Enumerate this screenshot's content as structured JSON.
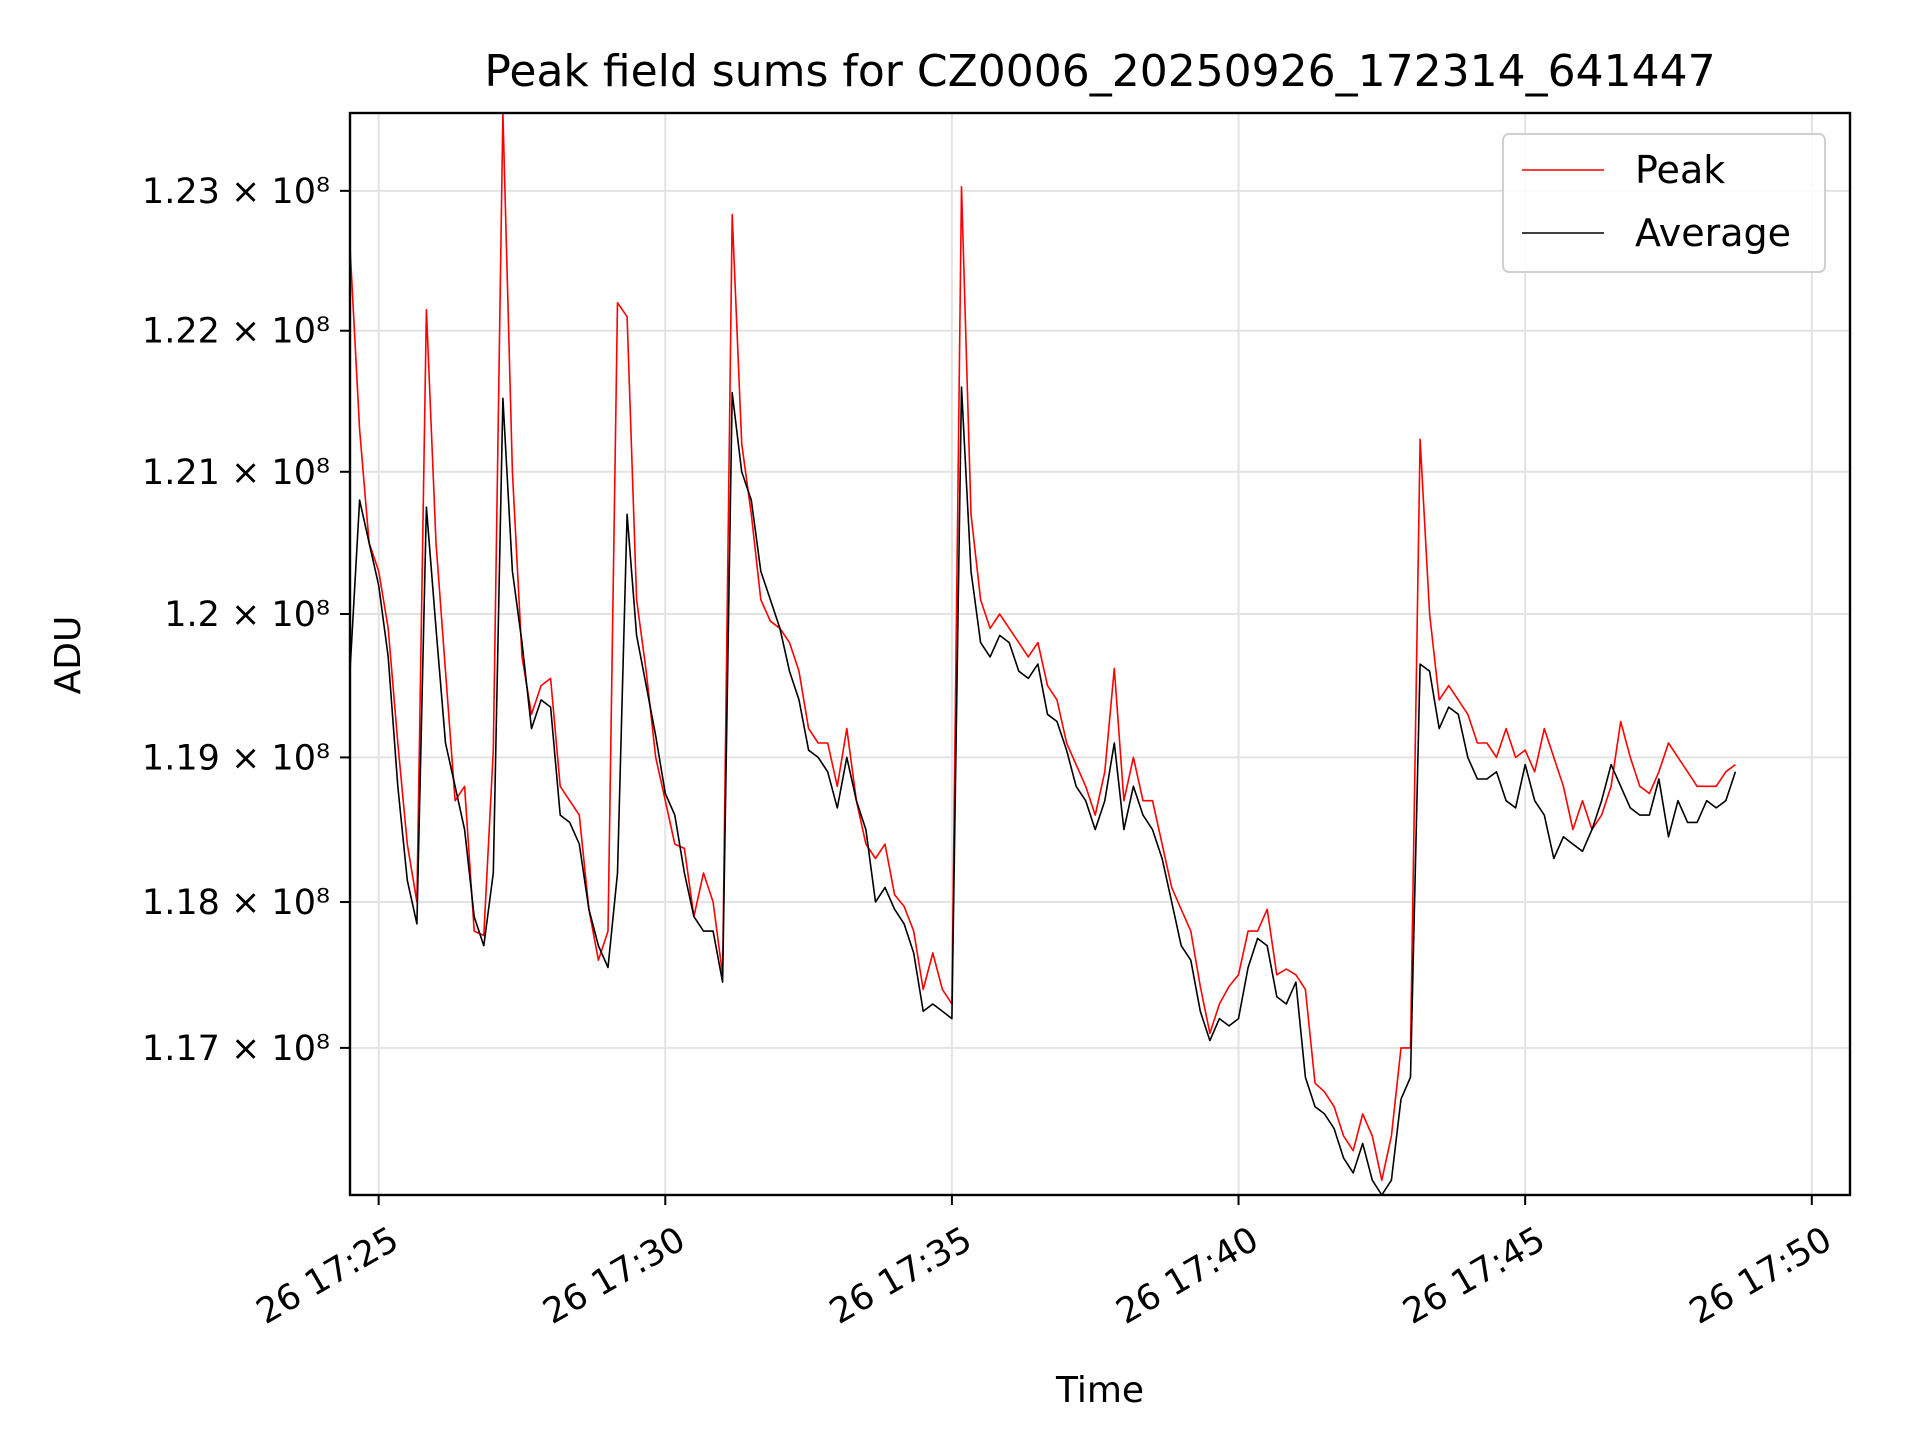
{
  "chart_data": {
    "type": "line",
    "title": "Peak field sums for CZ0006_20250926_172314_641447",
    "xlabel": "Time",
    "ylabel": "ADU",
    "x_unit": "time (2025-09-26, HH:MM)",
    "x_start": "17:24:30",
    "x_step_seconds": 10,
    "xlim": [
      "17:24:30",
      "17:50:40"
    ],
    "ylim": [
      116000000,
      123560000
    ],
    "y_scale": "log",
    "x_ticks": [
      {
        "time": "17:25",
        "label": "26 17:25"
      },
      {
        "time": "17:30",
        "label": "26 17:30"
      },
      {
        "time": "17:35",
        "label": "26 17:35"
      },
      {
        "time": "17:40",
        "label": "26 17:40"
      },
      {
        "time": "17:45",
        "label": "26 17:45"
      },
      {
        "time": "17:50",
        "label": "26 17:50"
      }
    ],
    "y_ticks": [
      {
        "value": 117000000,
        "label": "1.17 × 10⁸"
      },
      {
        "value": 118000000,
        "label": "1.18 × 10⁸"
      },
      {
        "value": 119000000,
        "label": "1.19 × 10⁸"
      },
      {
        "value": 120000000,
        "label": "1.2 × 10⁸"
      },
      {
        "value": 121000000,
        "label": "1.21 × 10⁸"
      },
      {
        "value": 122000000,
        "label": "1.22 × 10⁸"
      },
      {
        "value": 123000000,
        "label": "1.23 × 10⁸"
      }
    ],
    "grid": true,
    "legend_position": "top-right",
    "series": [
      {
        "name": "Peak",
        "color": "#ff0000",
        "values": [
          122600000,
          121300000,
          120500000,
          120300000,
          119900000,
          119100000,
          118400000,
          118000000,
          122150000,
          120500000,
          119600000,
          118700000,
          118800000,
          117800000,
          117770000,
          119050000,
          123560000,
          121000000,
          119700000,
          119300000,
          119500000,
          119550000,
          118800000,
          118700000,
          118600000,
          117950000,
          117600000,
          117800000,
          122200000,
          122100000,
          120100000,
          119600000,
          119000000,
          118700000,
          118400000,
          118370000,
          117900000,
          118200000,
          118000000,
          117500000,
          122830000,
          121200000,
          120700000,
          120100000,
          119950000,
          119900000,
          119800000,
          119600000,
          119200000,
          119100000,
          119100000,
          118800000,
          119200000,
          118700000,
          118400000,
          118300000,
          118400000,
          118050000,
          117970000,
          117800000,
          117400000,
          117650000,
          117400000,
          117300000,
          123030000,
          120700000,
          120100000,
          119900000,
          120000000,
          119900000,
          119800000,
          119700000,
          119800000,
          119500000,
          119400000,
          119100000,
          118950000,
          118800000,
          118600000,
          118900000,
          119620000,
          118700000,
          119000000,
          118700000,
          118700000,
          118400000,
          118100000,
          117950000,
          117800000,
          117420000,
          117100000,
          117300000,
          117420000,
          117500000,
          117800000,
          117800000,
          117950000,
          117500000,
          117540000,
          117500000,
          117400000,
          116760000,
          116700000,
          116600000,
          116400000,
          116300000,
          116550000,
          116400000,
          116100000,
          116400000,
          117000000,
          117000000,
          121230000,
          120000000,
          119400000,
          119500000,
          119400000,
          119300000,
          119100000,
          119100000,
          119000000,
          119200000,
          119000000,
          119050000,
          118900000,
          119200000,
          119000000,
          118800000,
          118500000,
          118700000,
          118500000,
          118600000,
          118800000,
          119250000,
          119000000,
          118800000,
          118750000,
          118900000,
          119100000,
          119000000,
          118900000,
          118800000,
          118800000,
          118800000,
          118900000,
          118950000
        ],
        "x_step_seconds": 10
      },
      {
        "name": "Average",
        "color": "#000000",
        "values": [
          119600000,
          120800000,
          120500000,
          120200000,
          119700000,
          118800000,
          118150000,
          117850000,
          120750000,
          119900000,
          119100000,
          118800000,
          118500000,
          117900000,
          117700000,
          118200000,
          121520000,
          120300000,
          119800000,
          119200000,
          119400000,
          119350000,
          118600000,
          118550000,
          118400000,
          117950000,
          117700000,
          117550000,
          118200000,
          120700000,
          119850000,
          119500000,
          119150000,
          118750000,
          118600000,
          118200000,
          117900000,
          117800000,
          117800000,
          117450000,
          121560000,
          121000000,
          120800000,
          120300000,
          120100000,
          119900000,
          119600000,
          119400000,
          119050000,
          119000000,
          118900000,
          118650000,
          119000000,
          118700000,
          118500000,
          118000000,
          118100000,
          117950000,
          117850000,
          117650000,
          117250000,
          117300000,
          117250000,
          117200000,
          121600000,
          120300000,
          119800000,
          119700000,
          119850000,
          119800000,
          119600000,
          119550000,
          119650000,
          119300000,
          119250000,
          119050000,
          118800000,
          118700000,
          118500000,
          118700000,
          119100000,
          118500000,
          118800000,
          118600000,
          118500000,
          118300000,
          118000000,
          117700000,
          117600000,
          117250000,
          117050000,
          117200000,
          117150000,
          117200000,
          117550000,
          117750000,
          117700000,
          117350000,
          117300000,
          117450000,
          116800000,
          116600000,
          116550000,
          116450000,
          116250000,
          116150000,
          116350000,
          116100000,
          116000000,
          116100000,
          116650000,
          116800000,
          119650000,
          119600000,
          119200000,
          119350000,
          119300000,
          119000000,
          118850000,
          118850000,
          118900000,
          118700000,
          118650000,
          118950000,
          118700000,
          118600000,
          118300000,
          118450000,
          118400000,
          118350000,
          118500000,
          118700000,
          118950000,
          118800000,
          118650000,
          118600000,
          118600000,
          118850000,
          118450000,
          118700000,
          118550000,
          118550000,
          118700000,
          118650000,
          118700000,
          118900000
        ],
        "x_step_seconds": 10
      }
    ]
  },
  "legend": {
    "items": [
      "Peak",
      "Average"
    ]
  }
}
